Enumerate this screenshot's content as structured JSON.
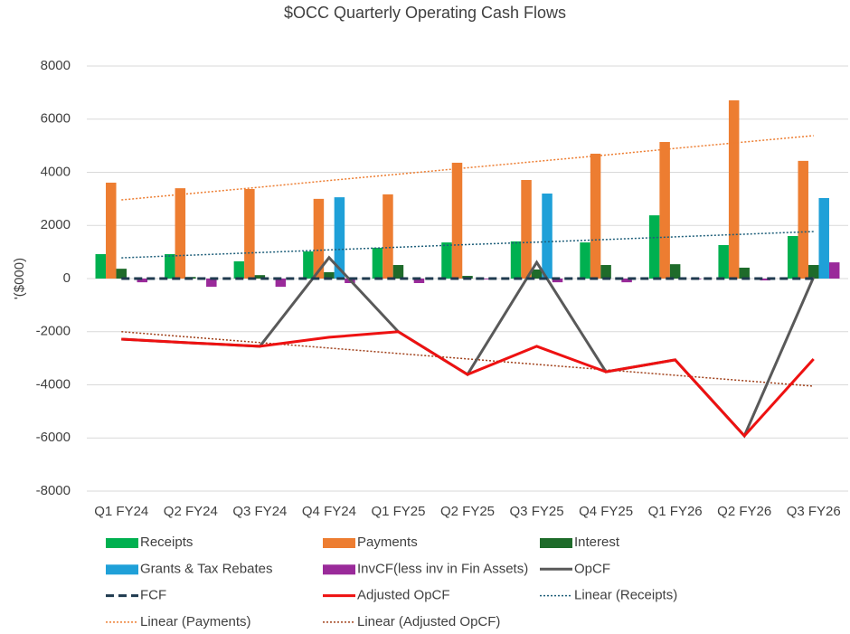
{
  "chart_data": {
    "type": "combo",
    "title": "$OCC Quarterly Operating Cash Flows",
    "y_label": "'($000)",
    "categories": [
      "Q1 FY24",
      "Q2 FY24",
      "Q3 FY24",
      "Q4 FY24",
      "Q1 FY25",
      "Q2 FY25",
      "Q3 FY25",
      "Q4 FY25",
      "Q1 FY26",
      "Q2 FY26",
      "Q3 FY26"
    ],
    "ylim": [
      -8000,
      8000
    ],
    "yticks": [
      -8000,
      -6000,
      -4000,
      -2000,
      0,
      2000,
      4000,
      6000,
      8000
    ],
    "grid": true,
    "legend": "bottom",
    "series": [
      {
        "name": "Receipts",
        "type": "bar",
        "color": "#00b050",
        "values": [
          920,
          920,
          650,
          1020,
          1160,
          1360,
          1400,
          1360,
          2380,
          1260,
          1600
        ]
      },
      {
        "name": "Payments",
        "type": "bar",
        "color": "#ed7d31",
        "values": [
          3610,
          3400,
          3370,
          3000,
          3170,
          4360,
          3710,
          4700,
          5140,
          6710,
          4430
        ]
      },
      {
        "name": "Interest",
        "type": "bar",
        "color": "#1e6b2a",
        "values": [
          370,
          60,
          130,
          240,
          510,
          100,
          340,
          510,
          540,
          410,
          510
        ]
      },
      {
        "name": "Grants & Tax Rebates",
        "type": "bar",
        "color": "#1fa0d8",
        "values": [
          0,
          0,
          0,
          3060,
          0,
          0,
          3200,
          0,
          0,
          0,
          3030
        ]
      },
      {
        "name": "InvCF(less inv in Fin Assets)",
        "type": "bar",
        "color": "#9a2a9a",
        "values": [
          -140,
          -310,
          -310,
          -170,
          -170,
          -30,
          -140,
          -140,
          -30,
          -70,
          610
        ]
      },
      {
        "name": "OpCF",
        "type": "line",
        "color": "#595959",
        "dash": "solid",
        "width": 3,
        "values": [
          -2280,
          -2420,
          -2550,
          790,
          -2000,
          -3610,
          610,
          -3510,
          -3060,
          -5920,
          50
        ]
      },
      {
        "name": "FCF",
        "type": "line",
        "color": "#1f3a4f",
        "dash": "dashed",
        "width": 3,
        "values": [
          0,
          0,
          0,
          0,
          0,
          0,
          0,
          0,
          0,
          0,
          0
        ]
      },
      {
        "name": "Adjusted OpCF",
        "type": "line",
        "color": "#ee1111",
        "dash": "solid",
        "width": 3,
        "values": [
          -2280,
          -2420,
          -2550,
          -2210,
          -2000,
          -3610,
          -2550,
          -3510,
          -3060,
          -5920,
          -3030
        ]
      },
      {
        "name": "Linear (Receipts)",
        "type": "line",
        "color": "#1f5f7a",
        "dash": "dotted",
        "width": 1.5,
        "values": [
          780,
          880,
          980,
          1080,
          1180,
          1280,
          1370,
          1470,
          1570,
          1670,
          1770
        ]
      },
      {
        "name": "Linear (Payments)",
        "type": "line",
        "color": "#ed7d31",
        "dash": "dotted",
        "width": 1.5,
        "values": [
          2960,
          3200,
          3440,
          3690,
          3930,
          4170,
          4410,
          4650,
          4900,
          5140,
          5380
        ]
      },
      {
        "name": "Linear (Adjusted OpCF)",
        "type": "line",
        "color": "#a0401a",
        "dash": "dotted",
        "width": 1.5,
        "values": [
          -2000,
          -2205,
          -2410,
          -2615,
          -2820,
          -3025,
          -3230,
          -3435,
          -3640,
          -3845,
          -4050
        ]
      }
    ]
  }
}
